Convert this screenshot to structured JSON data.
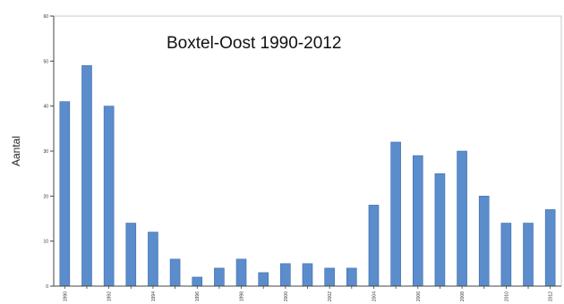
{
  "chart_data": {
    "type": "bar",
    "title": "Boxtel-Oost 1990-2012",
    "xlabel": "",
    "ylabel": "Aantal",
    "ylim": [
      0,
      60
    ],
    "yticks": [
      0,
      10,
      20,
      30,
      40,
      50,
      60
    ],
    "grid": false,
    "categories": [
      "1990",
      "1991",
      "1992",
      "1993",
      "1994",
      "1995",
      "1996",
      "1997",
      "1998",
      "1999",
      "2000",
      "2001",
      "2002",
      "2003",
      "2004",
      "2005",
      "2006",
      "2007",
      "2008",
      "2009",
      "2010",
      "2011",
      "2012"
    ],
    "xtick_labels": [
      "1990",
      "",
      "1992",
      "",
      "1994",
      "",
      "1996",
      "",
      "1998",
      "",
      "2000",
      "",
      "2002",
      "",
      "2004",
      "",
      "2006",
      "",
      "2008",
      "",
      "2010",
      "",
      "2012"
    ],
    "values": [
      41,
      49,
      40,
      14,
      12,
      6,
      2,
      4,
      6,
      3,
      5,
      5,
      4,
      4,
      18,
      32,
      29,
      25,
      30,
      20,
      14,
      14,
      17
    ],
    "bar_color": "#5b8ccc",
    "bar_edge_color": "#3e6ea8"
  }
}
